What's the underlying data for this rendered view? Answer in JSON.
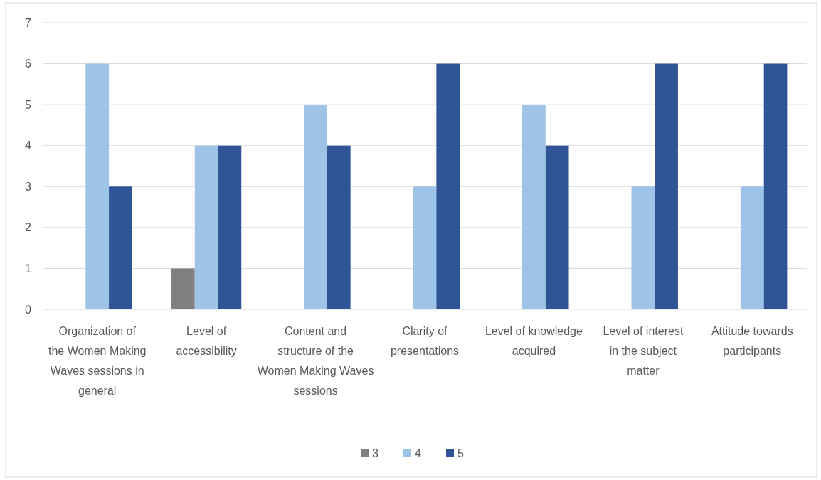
{
  "chart_data": {
    "type": "bar",
    "categories": [
      "Organization of the Women Making Waves sessions in general",
      "Level of accessibility",
      "Content and structure of the Women Making Waves sessions",
      "Clarity of presentations",
      "Level of knowledge acquired",
      "Level of interest in the subject matter",
      "Attitude towards participants"
    ],
    "series": [
      {
        "name": "3",
        "color": "#808080",
        "values": [
          null,
          1,
          null,
          null,
          null,
          null,
          null
        ]
      },
      {
        "name": "4",
        "color": "#9dc3e6",
        "values": [
          6,
          4,
          5,
          3,
          5,
          3,
          3
        ]
      },
      {
        "name": "5",
        "color": "#2f5597",
        "values": [
          3,
          4,
          4,
          6,
          4,
          6,
          6
        ]
      }
    ],
    "ylim": [
      0,
      7
    ],
    "yticks": [
      0,
      1,
      2,
      3,
      4,
      5,
      6,
      7
    ],
    "grid": "y",
    "legend": "bottom"
  }
}
